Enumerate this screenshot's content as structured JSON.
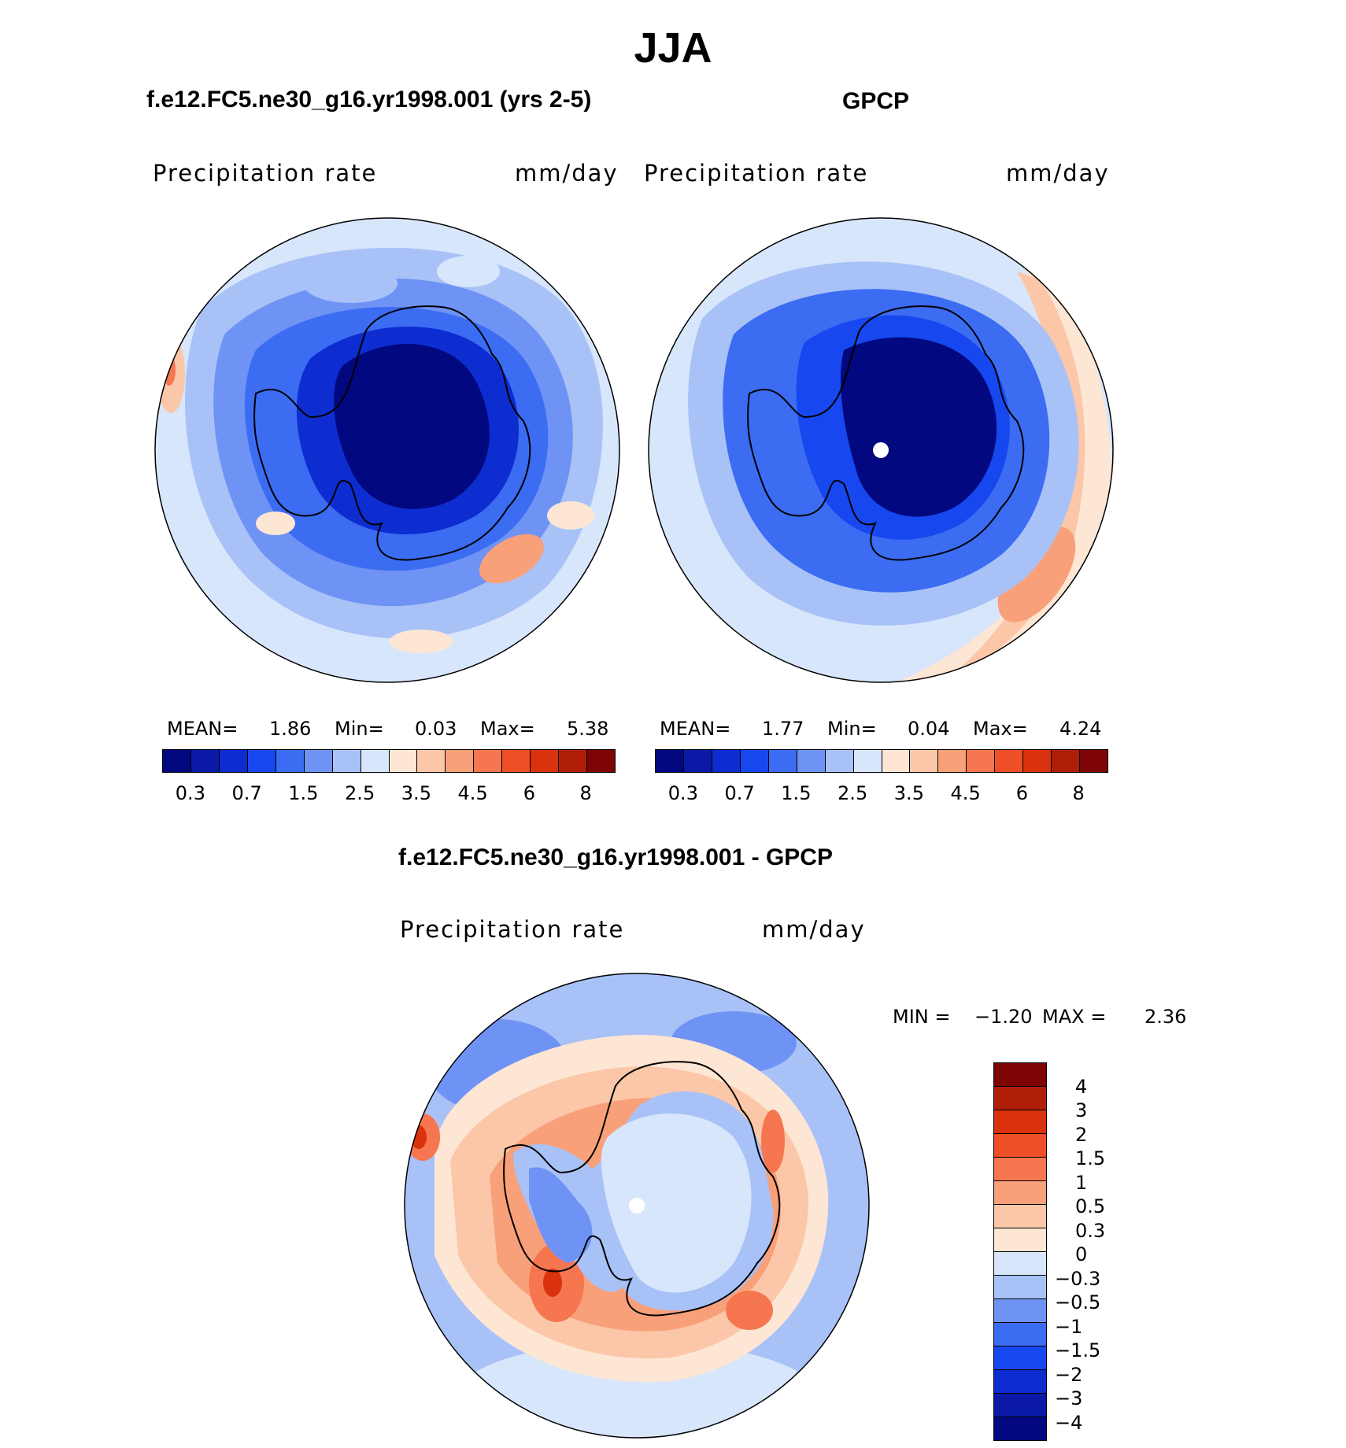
{
  "season": "JJA",
  "panels": {
    "model": {
      "title": "f.e12.FC5.ne30_g16.yr1998.001 (yrs 2-5)",
      "variable": "Precipitation  rate",
      "units": "mm/day",
      "stats": {
        "mean_label": "MEAN=",
        "mean": "1.86",
        "min_label": "Min=",
        "min": "0.03",
        "max_label": "Max=",
        "max": "5.38"
      }
    },
    "obs": {
      "title": "GPCP",
      "variable": "Precipitation  rate",
      "units": "mm/day",
      "stats": {
        "mean_label": "MEAN=",
        "mean": "1.77",
        "min_label": "Min=",
        "min": "0.04",
        "max_label": "Max=",
        "max": "4.24"
      }
    },
    "diff": {
      "title": "f.e12.FC5.ne30_g16.yr1998.001 - GPCP",
      "variable": "Precipitation  rate",
      "units": "mm/day",
      "stats": {
        "min_label": "MIN =",
        "min": "−1.20",
        "max_label": "MAX =",
        "max": "2.36"
      }
    }
  },
  "colorbar_abs": {
    "labels": [
      "0.3",
      "0.7",
      "1.5",
      "2.5",
      "3.5",
      "4.5",
      "6",
      "8"
    ],
    "colors": [
      "#02087f",
      "#0a1aa6",
      "#0d2dd0",
      "#1747ee",
      "#3b6cf2",
      "#6f93f5",
      "#a8c2f8",
      "#d8e6fb",
      "#fde6d4",
      "#fbc7a8",
      "#f8a07a",
      "#f5764f",
      "#ef4f26",
      "#d9320c",
      "#b01e0a",
      "#7d0505"
    ]
  },
  "colorbar_diff": {
    "labels": [
      "4",
      "3",
      "2",
      "1.5",
      "1",
      "0.5",
      "0.3",
      "0",
      "−0.3",
      "−0.5",
      "−1",
      "−1.5",
      "−2",
      "−3",
      "−4"
    ],
    "colors": [
      "#7d0505",
      "#b01e0a",
      "#d9320c",
      "#ef4f26",
      "#f5764f",
      "#f8a07a",
      "#fbc7a8",
      "#fde6d4",
      "#d8e6fb",
      "#a8c2f8",
      "#6f93f5",
      "#3b6cf2",
      "#1747ee",
      "#0d2dd0",
      "#0a1aa6",
      "#02087f"
    ]
  }
}
